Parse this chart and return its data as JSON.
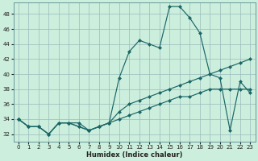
{
  "xlabel": "Humidex (Indice chaleur)",
  "bg_color": "#cceedd",
  "grid_color": "#99bbbb",
  "line_color": "#1a6666",
  "xlim": [
    -0.5,
    23.5
  ],
  "ylim": [
    31.0,
    49.5
  ],
  "yticks": [
    32,
    34,
    36,
    38,
    40,
    42,
    44,
    46,
    48
  ],
  "xticks": [
    0,
    1,
    2,
    3,
    4,
    5,
    6,
    7,
    8,
    9,
    10,
    11,
    12,
    13,
    14,
    15,
    16,
    17,
    18,
    19,
    20,
    21,
    22,
    23
  ],
  "series1_x": [
    0,
    1,
    2,
    3,
    4,
    5,
    6,
    7,
    8,
    9,
    10,
    11,
    12,
    13,
    14,
    15,
    16,
    17,
    18,
    19,
    20,
    21,
    22,
    23
  ],
  "series1_y": [
    34.0,
    33.0,
    33.0,
    32.0,
    33.5,
    33.5,
    33.0,
    32.5,
    33.0,
    33.5,
    34.0,
    34.5,
    35.0,
    35.5,
    36.0,
    36.5,
    37.0,
    37.0,
    37.5,
    38.0,
    38.0,
    38.0,
    38.0,
    38.0
  ],
  "series2_x": [
    0,
    1,
    2,
    3,
    4,
    5,
    6,
    7,
    8,
    9,
    10,
    11,
    12,
    13,
    14,
    15,
    16,
    17,
    18,
    19,
    20,
    21,
    22,
    23
  ],
  "series2_y": [
    34.0,
    33.0,
    33.0,
    32.0,
    33.5,
    33.5,
    33.5,
    32.5,
    33.0,
    33.5,
    35.0,
    36.0,
    36.5,
    37.0,
    37.5,
    38.0,
    38.5,
    39.0,
    39.5,
    40.0,
    40.5,
    41.0,
    41.5,
    42.0
  ],
  "series3_x": [
    0,
    1,
    2,
    3,
    4,
    5,
    6,
    7,
    8,
    9,
    10,
    11,
    12,
    13,
    14,
    15,
    16,
    17,
    18,
    19,
    20,
    21,
    22,
    23
  ],
  "series3_y": [
    34.0,
    33.0,
    33.0,
    32.0,
    33.5,
    33.5,
    33.0,
    32.5,
    33.0,
    33.5,
    39.5,
    43.0,
    44.5,
    44.0,
    43.5,
    49.0,
    49.0,
    47.5,
    45.5,
    40.0,
    39.5,
    32.5,
    39.0,
    37.5
  ]
}
